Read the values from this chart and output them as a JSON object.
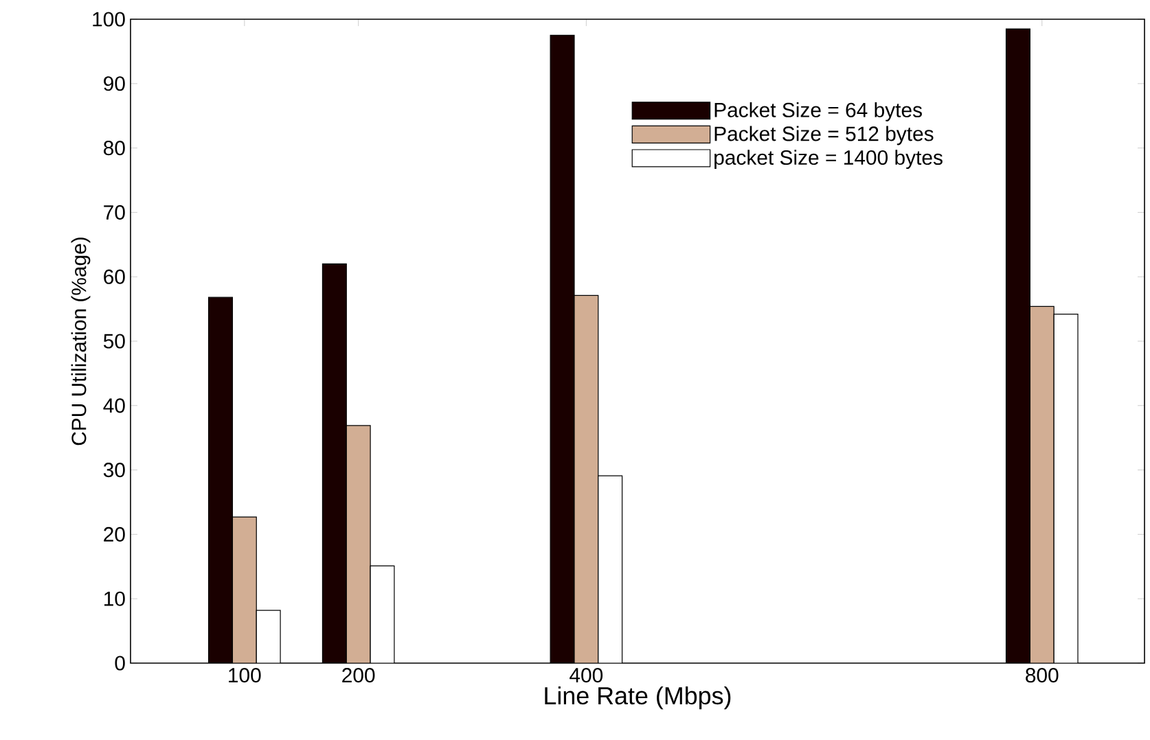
{
  "chart_data": {
    "type": "bar",
    "xlabel": "Line Rate (Mbps)",
    "ylabel": "CPU Utilization (%age)",
    "x": [
      100,
      200,
      400,
      800
    ],
    "series": [
      {
        "name": "Packet Size = 64 bytes",
        "color": "#1a0000",
        "values": [
          56.8,
          62.0,
          97.5,
          98.5
        ]
      },
      {
        "name": "Packet Size = 512 bytes",
        "color": "#d2ae94",
        "values": [
          22.7,
          36.9,
          57.1,
          55.4
        ]
      },
      {
        "name": "packet Size = 1400 bytes",
        "color": "#ffffff",
        "values": [
          8.2,
          15.1,
          29.1,
          54.2
        ]
      }
    ],
    "xlim": [
      0,
      890
    ],
    "xticks": [
      100,
      200,
      400,
      800
    ],
    "ylim": [
      0,
      100
    ],
    "yticks": [
      0,
      10,
      20,
      30,
      40,
      50,
      60,
      70,
      80,
      90,
      100
    ],
    "grid": false,
    "legend": "top right"
  }
}
